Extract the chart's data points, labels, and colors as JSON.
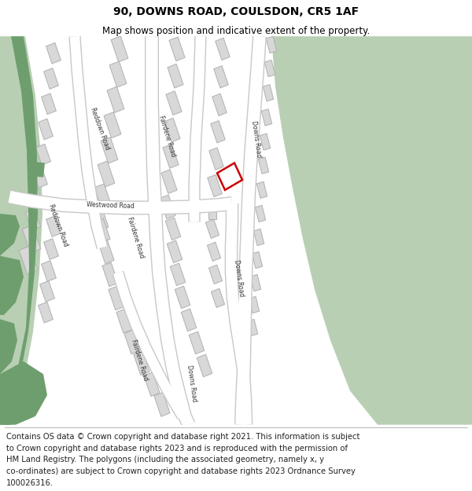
{
  "title": "90, DOWNS ROAD, COULSDON, CR5 1AF",
  "subtitle": "Map shows position and indicative extent of the property.",
  "footer_lines": [
    "Contains OS data © Crown copyright and database right 2021. This information is subject",
    "to Crown copyright and database rights 2023 and is reproduced with the permission of",
    "HM Land Registry. The polygons (including the associated geometry, namely x, y",
    "co-ordinates) are subject to Crown copyright and database rights 2023 Ordnance Survey",
    "100026316."
  ],
  "map_bg": "#f0f0f0",
  "green_light": "#b8cfb3",
  "green_dark": "#6e9e6e",
  "road_fill": "#ffffff",
  "road_edge": "#c8c8c8",
  "building_fill": "#d8d8d8",
  "building_edge": "#b0b0b0",
  "highlight_red": "#cc0000",
  "title_fs": 10,
  "subtitle_fs": 8.5,
  "footer_fs": 7.2
}
